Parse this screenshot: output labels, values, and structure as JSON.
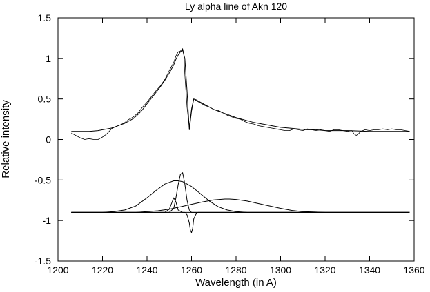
{
  "chart_data": {
    "type": "line",
    "title": "Ly alpha line of Akn 120",
    "xlabel": "Wavelength (in A)",
    "ylabel": "Relative intensity",
    "xlim": [
      1200,
      1360
    ],
    "ylim": [
      -1.5,
      1.5
    ],
    "xticks": [
      1200,
      1220,
      1240,
      1260,
      1280,
      1300,
      1320,
      1340,
      1360
    ],
    "xtick_labels": [
      "1200",
      "1220",
      "1240",
      "1260",
      "1280",
      "1300",
      "1320",
      "1340",
      "1360"
    ],
    "yticks": [
      -1.5,
      -1,
      -0.5,
      0,
      0.5,
      1,
      1.5
    ],
    "ytick_labels": [
      "-1.5",
      "-1",
      "-0.5",
      "0",
      "0.5",
      "1",
      "1.5"
    ],
    "grid": false,
    "legend": "none",
    "series": [
      {
        "role": "observed spectrum",
        "x": [
          1206,
          1208,
          1210,
          1212,
          1214,
          1216,
          1218,
          1220,
          1222,
          1224,
          1226,
          1228,
          1230,
          1232,
          1234,
          1236,
          1238,
          1240,
          1242,
          1244,
          1246,
          1248,
          1250,
          1252,
          1253,
          1254,
          1255,
          1256,
          1256.5,
          1257,
          1258,
          1259,
          1260,
          1261,
          1262,
          1264,
          1266,
          1268,
          1270,
          1272,
          1274,
          1276,
          1278,
          1280,
          1282,
          1284,
          1286,
          1288,
          1290,
          1292,
          1294,
          1296,
          1298,
          1300,
          1302,
          1304,
          1306,
          1308,
          1310,
          1312,
          1314,
          1316,
          1318,
          1320,
          1322,
          1324,
          1326,
          1328,
          1330,
          1332,
          1333,
          1334,
          1335,
          1336,
          1338,
          1340,
          1342,
          1344,
          1346,
          1348,
          1350,
          1352,
          1354,
          1356,
          1358
        ],
        "y": [
          0.08,
          0.05,
          0.02,
          0.0,
          0.01,
          0.0,
          0.0,
          0.03,
          0.07,
          0.13,
          0.16,
          0.18,
          0.21,
          0.25,
          0.28,
          0.33,
          0.4,
          0.46,
          0.53,
          0.6,
          0.66,
          0.74,
          0.85,
          0.95,
          1.03,
          1.08,
          1.09,
          1.12,
          1.06,
          0.8,
          0.4,
          0.15,
          0.38,
          0.5,
          0.48,
          0.45,
          0.42,
          0.4,
          0.37,
          0.36,
          0.33,
          0.3,
          0.28,
          0.26,
          0.25,
          0.22,
          0.2,
          0.19,
          0.17,
          0.16,
          0.15,
          0.14,
          0.13,
          0.12,
          0.11,
          0.11,
          0.13,
          0.12,
          0.11,
          0.13,
          0.12,
          0.11,
          0.12,
          0.11,
          0.1,
          0.12,
          0.12,
          0.11,
          0.1,
          0.11,
          0.07,
          0.05,
          0.07,
          0.1,
          0.12,
          0.11,
          0.12,
          0.12,
          0.13,
          0.12,
          0.13,
          0.12,
          0.12,
          0.11,
          0.1
        ]
      },
      {
        "role": "model fit",
        "x": [
          1206,
          1210,
          1214,
          1218,
          1220,
          1222,
          1224,
          1226,
          1228,
          1230,
          1232,
          1234,
          1236,
          1238,
          1240,
          1242,
          1244,
          1246,
          1248,
          1250,
          1252,
          1253,
          1254,
          1255,
          1256,
          1257,
          1258,
          1259,
          1260,
          1261,
          1262,
          1264,
          1266,
          1268,
          1270,
          1272,
          1274,
          1276,
          1278,
          1280,
          1284,
          1288,
          1292,
          1296,
          1300,
          1304,
          1308,
          1312,
          1316,
          1320,
          1330,
          1340,
          1350,
          1358
        ],
        "y": [
          0.1,
          0.1,
          0.1,
          0.11,
          0.12,
          0.13,
          0.14,
          0.16,
          0.18,
          0.2,
          0.23,
          0.26,
          0.31,
          0.37,
          0.44,
          0.51,
          0.58,
          0.65,
          0.73,
          0.82,
          0.92,
          0.99,
          1.04,
          1.08,
          1.1,
          1.0,
          0.6,
          0.12,
          0.35,
          0.5,
          0.49,
          0.46,
          0.43,
          0.4,
          0.37,
          0.35,
          0.33,
          0.31,
          0.29,
          0.27,
          0.24,
          0.21,
          0.19,
          0.17,
          0.15,
          0.14,
          0.13,
          0.12,
          0.12,
          0.11,
          0.11,
          0.1,
          0.1,
          0.1
        ]
      },
      {
        "role": "broad component",
        "x": [
          1206,
          1210,
          1215,
          1220,
          1225,
          1230,
          1235,
          1240,
          1244,
          1248,
          1252,
          1254,
          1256,
          1260,
          1264,
          1268,
          1272,
          1276,
          1280,
          1285,
          1290,
          1295,
          1300,
          1305,
          1310,
          1320,
          1340,
          1358
        ],
        "y": [
          -0.9,
          -0.9,
          -0.9,
          -0.9,
          -0.89,
          -0.87,
          -0.82,
          -0.72,
          -0.63,
          -0.55,
          -0.51,
          -0.51,
          -0.52,
          -0.58,
          -0.67,
          -0.76,
          -0.83,
          -0.87,
          -0.89,
          -0.9,
          -0.9,
          -0.9,
          -0.9,
          -0.9,
          -0.9,
          -0.9,
          -0.9,
          -0.9
        ]
      },
      {
        "role": "wide red component",
        "x": [
          1206,
          1220,
          1230,
          1235,
          1240,
          1245,
          1250,
          1255,
          1260,
          1265,
          1270,
          1275,
          1277,
          1280,
          1285,
          1290,
          1295,
          1300,
          1305,
          1310,
          1315,
          1320,
          1330,
          1340,
          1358
        ],
        "y": [
          -0.9,
          -0.9,
          -0.9,
          -0.9,
          -0.89,
          -0.88,
          -0.86,
          -0.83,
          -0.8,
          -0.77,
          -0.745,
          -0.735,
          -0.735,
          -0.74,
          -0.76,
          -0.79,
          -0.82,
          -0.85,
          -0.875,
          -0.89,
          -0.895,
          -0.9,
          -0.9,
          -0.9,
          -0.9
        ]
      },
      {
        "role": "narrow emission component",
        "x": [
          1206,
          1250,
          1252,
          1253,
          1254,
          1255,
          1256,
          1257,
          1258,
          1259,
          1260,
          1262,
          1358
        ],
        "y": [
          -0.9,
          -0.9,
          -0.85,
          -0.72,
          -0.56,
          -0.43,
          -0.41,
          -0.55,
          -0.75,
          -0.87,
          -0.9,
          -0.9,
          -0.9
        ]
      },
      {
        "role": "small blue component",
        "x": [
          1206,
          1248,
          1250,
          1251,
          1252,
          1253,
          1254,
          1256,
          1358
        ],
        "y": [
          -0.9,
          -0.9,
          -0.86,
          -0.79,
          -0.72,
          -0.77,
          -0.87,
          -0.9,
          -0.9
        ]
      },
      {
        "role": "absorption component",
        "x": [
          1206,
          1257,
          1258,
          1259,
          1259.5,
          1260,
          1260.5,
          1261,
          1262,
          1263,
          1358
        ],
        "y": [
          -0.9,
          -0.9,
          -0.93,
          -1.03,
          -1.12,
          -1.15,
          -1.1,
          -0.98,
          -0.92,
          -0.9,
          -0.9
        ]
      }
    ]
  }
}
